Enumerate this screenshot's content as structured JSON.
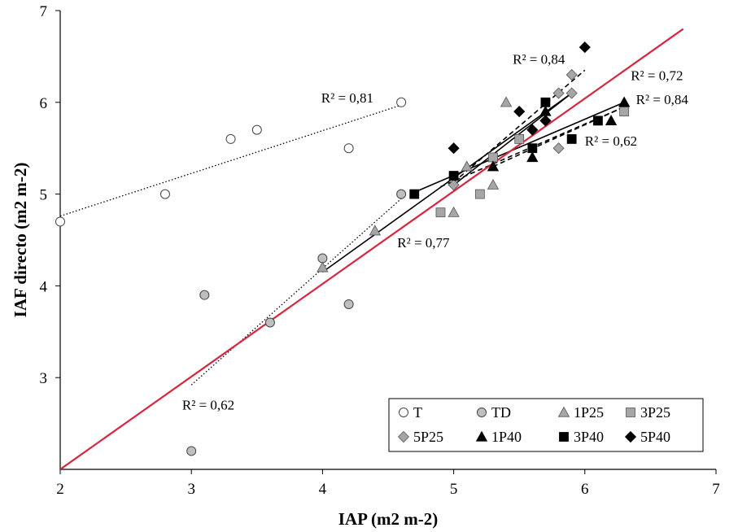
{
  "chart_data": {
    "type": "scatter",
    "xlabel": "IAP (m2 m-2)",
    "ylabel": "IAF directo (m2 m-2)",
    "xlim": [
      2,
      7
    ],
    "ylim": [
      2,
      7
    ],
    "xticks": [
      "2",
      "3",
      "4",
      "5",
      "6",
      "7"
    ],
    "yticks": [
      "3",
      "4",
      "5",
      "6",
      "7"
    ],
    "series": [
      {
        "name": "T",
        "marker": "circle",
        "fill": "#ffffff",
        "points": [
          [
            2.0,
            4.7
          ],
          [
            2.8,
            5.0
          ],
          [
            3.3,
            5.6
          ],
          [
            3.5,
            5.7
          ],
          [
            4.2,
            5.5
          ],
          [
            4.6,
            6.0
          ]
        ]
      },
      {
        "name": "TD",
        "marker": "circle",
        "fill": "#bfbfbf",
        "points": [
          [
            3.0,
            2.2
          ],
          [
            3.1,
            3.9
          ],
          [
            3.6,
            3.6
          ],
          [
            4.0,
            4.3
          ],
          [
            4.2,
            3.8
          ],
          [
            4.6,
            5.0
          ]
        ]
      },
      {
        "name": "1P25",
        "marker": "triangle",
        "fill": "#a6a6a6",
        "points": [
          [
            4.0,
            4.2
          ],
          [
            4.4,
            4.6
          ],
          [
            5.0,
            4.8
          ],
          [
            5.1,
            5.3
          ],
          [
            5.3,
            5.1
          ],
          [
            5.4,
            6.0
          ]
        ]
      },
      {
        "name": "3P25",
        "marker": "square",
        "fill": "#a6a6a6",
        "points": [
          [
            4.9,
            4.8
          ],
          [
            5.2,
            5.0
          ],
          [
            5.3,
            5.4
          ],
          [
            5.5,
            5.6
          ],
          [
            6.3,
            5.9
          ]
        ]
      },
      {
        "name": "5P25",
        "marker": "diamond",
        "fill": "#a6a6a6",
        "points": [
          [
            5.0,
            5.1
          ],
          [
            5.7,
            5.8
          ],
          [
            5.8,
            5.5
          ],
          [
            5.8,
            6.1
          ],
          [
            5.9,
            6.1
          ],
          [
            5.9,
            6.3
          ]
        ]
      },
      {
        "name": "1P40",
        "marker": "triangle",
        "fill": "#000000",
        "points": [
          [
            5.3,
            5.3
          ],
          [
            5.6,
            5.4
          ],
          [
            5.7,
            5.9
          ],
          [
            6.2,
            5.8
          ],
          [
            6.3,
            6.0
          ]
        ]
      },
      {
        "name": "3P40",
        "marker": "square",
        "fill": "#000000",
        "points": [
          [
            4.7,
            5.0
          ],
          [
            5.0,
            5.2
          ],
          [
            5.6,
            5.5
          ],
          [
            5.7,
            6.0
          ],
          [
            5.9,
            5.6
          ],
          [
            6.1,
            5.8
          ]
        ]
      },
      {
        "name": "5P40",
        "marker": "diamond",
        "fill": "#000000",
        "points": [
          [
            5.0,
            5.5
          ],
          [
            5.5,
            5.9
          ],
          [
            5.6,
            5.7
          ],
          [
            5.7,
            5.8
          ],
          [
            6.0,
            6.6
          ]
        ]
      }
    ],
    "trendlines": [
      {
        "name": "T fit",
        "style": "dotted",
        "from": [
          2.0,
          4.76
        ],
        "to": [
          4.6,
          5.97
        ]
      },
      {
        "name": "TD fit",
        "style": "dotted",
        "from": [
          3.0,
          2.92
        ],
        "to": [
          4.6,
          4.95
        ]
      },
      {
        "name": "1P25 fit",
        "style": "solid",
        "from": [
          4.0,
          4.15
        ],
        "to": [
          5.9,
          6.1
        ]
      },
      {
        "name": "5P25 fit",
        "style": "dashed",
        "from": [
          5.0,
          5.13
        ],
        "to": [
          6.0,
          6.35
        ]
      },
      {
        "name": "3P25 fit",
        "style": "dashed",
        "from": [
          4.9,
          5.08
        ],
        "to": [
          6.3,
          5.95
        ]
      },
      {
        "name": "1P40 fit",
        "style": "dashed",
        "from": [
          5.3,
          5.3
        ],
        "to": [
          6.3,
          5.95
        ]
      },
      {
        "name": "3P40 fit",
        "style": "solid",
        "from": [
          4.7,
          5.02
        ],
        "to": [
          6.3,
          6.0
        ]
      },
      {
        "name": "5P40 fit",
        "style": "solid",
        "from": [
          5.0,
          5.1
        ],
        "to": [
          5.9,
          6.1
        ]
      },
      {
        "name": "1:1 line",
        "style": "red",
        "from": [
          2.0,
          2.0
        ],
        "to": [
          6.75,
          6.8
        ]
      }
    ],
    "annotations": [
      {
        "text": "R² = 0,81",
        "x": 3.99,
        "y": 6.0
      },
      {
        "text": "R² = 0,84",
        "x": 5.45,
        "y": 6.42
      },
      {
        "text": "R² = 0,72",
        "x": 6.35,
        "y": 6.24
      },
      {
        "text": "R² = 0,84",
        "x": 6.39,
        "y": 5.98
      },
      {
        "text": "R² = 0,62",
        "x": 6.0,
        "y": 5.53
      },
      {
        "text": "R² = 0,77",
        "x": 4.57,
        "y": 4.42
      },
      {
        "text": "R² = 0,62",
        "x": 2.93,
        "y": 2.65
      }
    ]
  }
}
